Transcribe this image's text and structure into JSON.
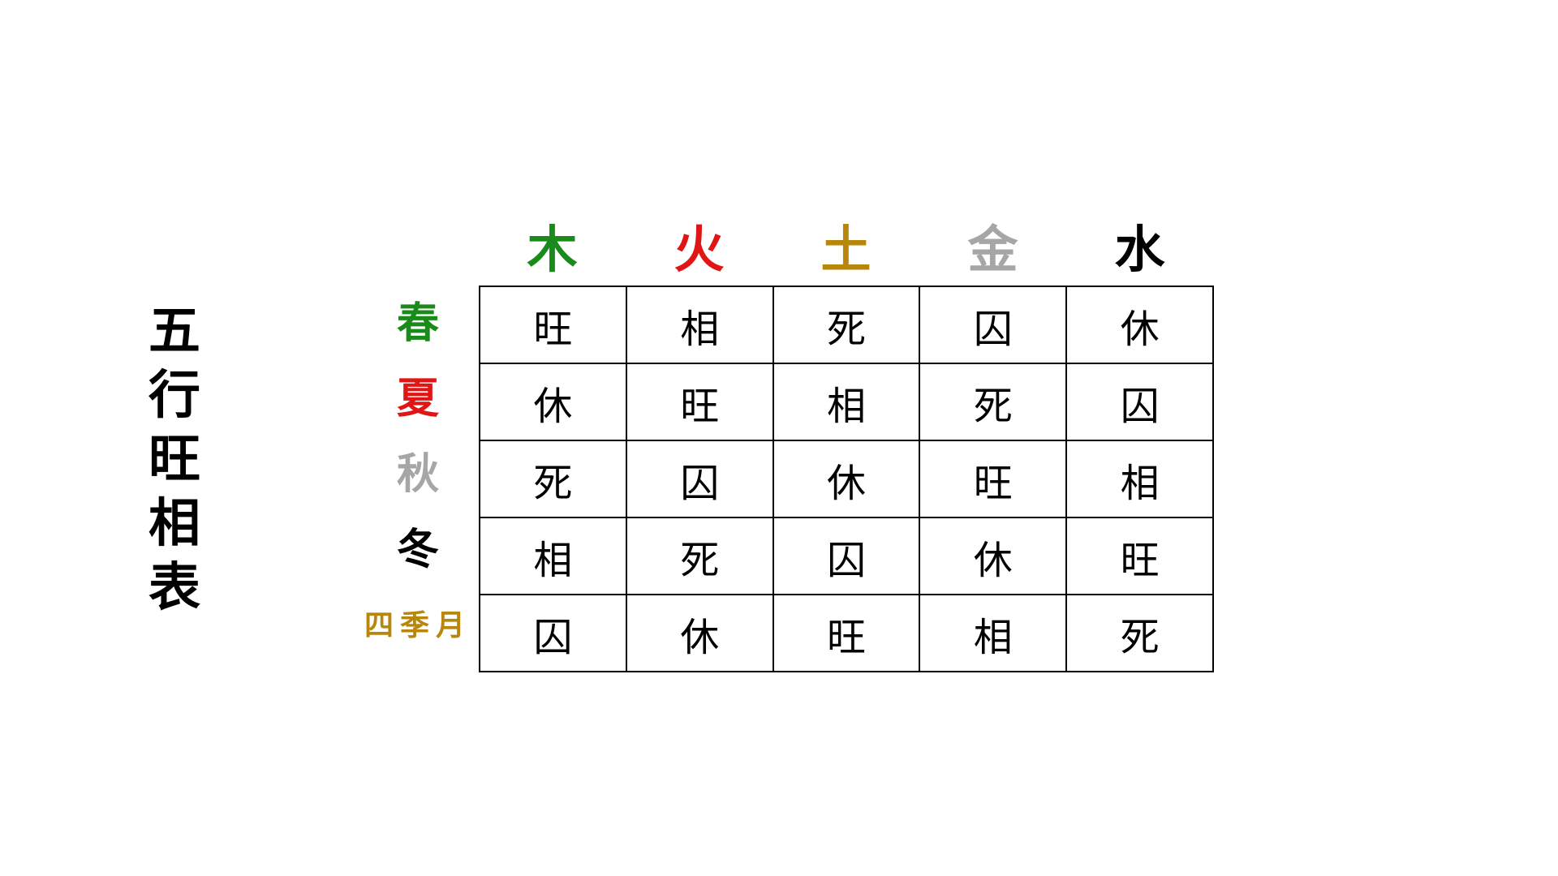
{
  "title_chars": [
    "五",
    "行",
    "旺",
    "相",
    "表"
  ],
  "elements": [
    {
      "label": "木",
      "color": "#1a8a1a"
    },
    {
      "label": "火",
      "color": "#e01515"
    },
    {
      "label": "土",
      "color": "#b8860b"
    },
    {
      "label": "金",
      "color": "#a6a6a6"
    },
    {
      "label": "水",
      "color": "#000000"
    }
  ],
  "seasons": [
    {
      "label": "春",
      "color": "#1a8a1a"
    },
    {
      "label": "夏",
      "color": "#e01515"
    },
    {
      "label": "秋",
      "color": "#a6a6a6"
    },
    {
      "label": "冬",
      "color": "#000000"
    },
    {
      "label": "四季月",
      "color": "#b8860b"
    }
  ],
  "table": [
    [
      "旺",
      "相",
      "死",
      "囚",
      "休"
    ],
    [
      "休",
      "旺",
      "相",
      "死",
      "囚"
    ],
    [
      "死",
      "囚",
      "休",
      "旺",
      "相"
    ],
    [
      "相",
      "死",
      "囚",
      "休",
      "旺"
    ],
    [
      "囚",
      "休",
      "旺",
      "相",
      "死"
    ]
  ]
}
